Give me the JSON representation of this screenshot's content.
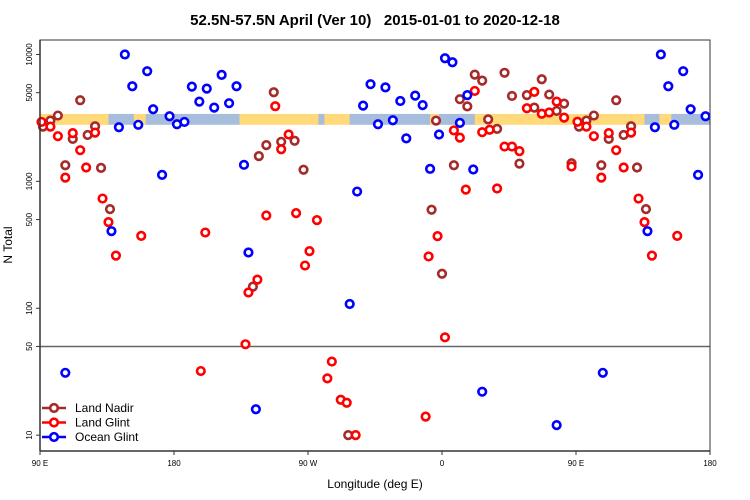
{
  "chart_data": {
    "type": "scatter",
    "title": "52.5N-57.5N April (Ver 10)   2015-01-01 to 2020-12-18",
    "xlabel": "Longitude (deg E)",
    "ylabel": "N Total",
    "x_note": "longitude unwrapped eastward from 90E (values >360 continue past 0)",
    "xlim": [
      90,
      540
    ],
    "ylim": [
      7.5,
      13000
    ],
    "yscale": "log",
    "x_ticks": [
      {
        "value": 90,
        "label": "90 E"
      },
      {
        "value": 180,
        "label": "180"
      },
      {
        "value": 270,
        "label": "90 W"
      },
      {
        "value": 360,
        "label": "0"
      },
      {
        "value": 450,
        "label": "90 E"
      },
      {
        "value": 540,
        "label": "180"
      }
    ],
    "y_ticks": [
      {
        "value": 10,
        "label": "10"
      },
      {
        "value": 50,
        "label": "50"
      },
      {
        "value": 100,
        "label": "100"
      },
      {
        "value": 500,
        "label": "500"
      },
      {
        "value": 1000,
        "label": "1000"
      },
      {
        "value": 5000,
        "label": "5000"
      },
      {
        "value": 10000,
        "label": "10000"
      }
    ],
    "reference_line": 50,
    "grid": false,
    "legend_position": "bottom-left",
    "surface_band": {
      "value_range": [
        2790,
        3400
      ],
      "land_color": "#FFD97A",
      "ocean_color": "#A6BDDB",
      "segments": [
        [
          90,
          136,
          "land"
        ],
        [
          136,
          153,
          "ocean"
        ],
        [
          153,
          161,
          "land"
        ],
        [
          161,
          224,
          "ocean"
        ],
        [
          224,
          277,
          "land"
        ],
        [
          277,
          281,
          "ocean"
        ],
        [
          281,
          298,
          "land"
        ],
        [
          298,
          352,
          "ocean"
        ],
        [
          352,
          358,
          "land"
        ],
        [
          358,
          382,
          "ocean"
        ],
        [
          382,
          496,
          "land"
        ],
        [
          496,
          506,
          "ocean"
        ],
        [
          506,
          514,
          "land"
        ],
        [
          514,
          540,
          "ocean"
        ]
      ]
    },
    "series": [
      {
        "name": "Land Nadir",
        "color": "#A52A2A",
        "points": [
          [
            92,
            2700
          ],
          [
            97,
            3010
          ],
          [
            102,
            3300
          ],
          [
            117,
            4360
          ],
          [
            112,
            2160
          ],
          [
            122,
            2320
          ],
          [
            127,
            2720
          ],
          [
            107,
            1340
          ],
          [
            131,
            1277
          ],
          [
            137,
            604
          ],
          [
            247,
            5040
          ],
          [
            242,
            1930
          ],
          [
            237,
            1580
          ],
          [
            252,
            2050
          ],
          [
            261,
            2090
          ],
          [
            267,
            1235
          ],
          [
            233,
            148
          ],
          [
            297,
            10
          ],
          [
            356,
            3010
          ],
          [
            368,
            1340
          ],
          [
            353,
            597
          ],
          [
            360,
            187
          ],
          [
            382,
            6940
          ],
          [
            387,
            6220
          ],
          [
            372,
            4440
          ],
          [
            377,
            3900
          ],
          [
            391,
            3080
          ],
          [
            402,
            7170
          ],
          [
            407,
            4710
          ],
          [
            417,
            4780
          ],
          [
            427,
            6380
          ],
          [
            432,
            4830
          ],
          [
            422,
            3810
          ],
          [
            437,
            3590
          ],
          [
            442,
            4100
          ],
          [
            397,
            2590
          ],
          [
            462,
            3300
          ],
          [
            457,
            3010
          ],
          [
            452,
            2700
          ],
          [
            472,
            2160
          ],
          [
            477,
            4360
          ],
          [
            482,
            2320
          ],
          [
            487,
            2720
          ],
          [
            412,
            1380
          ],
          [
            447,
            1390
          ],
          [
            467,
            1340
          ],
          [
            491,
            1285
          ],
          [
            497,
            604
          ]
        ]
      },
      {
        "name": "Land Glint",
        "color": "#FF0000",
        "points": [
          [
            91,
            2940
          ],
          [
            97,
            2700
          ],
          [
            102,
            2270
          ],
          [
            112,
            2400
          ],
          [
            117,
            1760
          ],
          [
            121,
            1285
          ],
          [
            107,
            1070
          ],
          [
            127,
            2420
          ],
          [
            132,
            732
          ],
          [
            136,
            477
          ],
          [
            158,
            372
          ],
          [
            201,
            395
          ],
          [
            141,
            260
          ],
          [
            248,
            3910
          ],
          [
            257,
            2340
          ],
          [
            252,
            1790
          ],
          [
            242,
            538
          ],
          [
            262,
            562
          ],
          [
            276,
            495
          ],
          [
            271,
            282
          ],
          [
            268,
            217
          ],
          [
            236,
            168
          ],
          [
            230,
            133
          ],
          [
            228,
            52
          ],
          [
            198,
            32
          ],
          [
            286,
            38
          ],
          [
            283,
            28
          ],
          [
            292,
            19
          ],
          [
            296,
            18
          ],
          [
            302,
            10
          ],
          [
            368,
            2520
          ],
          [
            372,
            2210
          ],
          [
            382,
            5160
          ],
          [
            387,
            2440
          ],
          [
            376,
            861
          ],
          [
            357,
            370
          ],
          [
            351,
            256
          ],
          [
            362,
            59
          ],
          [
            349,
            14
          ],
          [
            392,
            2550
          ],
          [
            422,
            5070
          ],
          [
            417,
            3770
          ],
          [
            427,
            3410
          ],
          [
            432,
            3490
          ],
          [
            437,
            4250
          ],
          [
            442,
            3180
          ],
          [
            451,
            2950
          ],
          [
            457,
            2700
          ],
          [
            462,
            2270
          ],
          [
            472,
            2400
          ],
          [
            487,
            2420
          ],
          [
            402,
            1880
          ],
          [
            407,
            1880
          ],
          [
            412,
            1730
          ],
          [
            477,
            1760
          ],
          [
            447,
            1310
          ],
          [
            467,
            1070
          ],
          [
            482,
            1285
          ],
          [
            397,
            878
          ],
          [
            492,
            732
          ],
          [
            496,
            477
          ],
          [
            518,
            372
          ],
          [
            501,
            260
          ]
        ]
      },
      {
        "name": "Ocean Glint",
        "color": "#0000FF",
        "points": [
          [
            147,
            10000
          ],
          [
            152,
            5620
          ],
          [
            162,
            7380
          ],
          [
            166,
            3700
          ],
          [
            177,
            3260
          ],
          [
            182,
            2820
          ],
          [
            187,
            2940
          ],
          [
            192,
            5580
          ],
          [
            197,
            4250
          ],
          [
            202,
            5380
          ],
          [
            207,
            3810
          ],
          [
            212,
            6900
          ],
          [
            217,
            4130
          ],
          [
            222,
            5620
          ],
          [
            143,
            2670
          ],
          [
            156,
            2790
          ],
          [
            172,
            1125
          ],
          [
            227,
            1350
          ],
          [
            138,
            405
          ],
          [
            230,
            275
          ],
          [
            362,
            9330
          ],
          [
            367,
            8680
          ],
          [
            312,
            5830
          ],
          [
            322,
            5500
          ],
          [
            307,
            3950
          ],
          [
            332,
            4300
          ],
          [
            342,
            4740
          ],
          [
            347,
            3990
          ],
          [
            317,
            2820
          ],
          [
            327,
            3030
          ],
          [
            336,
            2180
          ],
          [
            358,
            2340
          ],
          [
            372,
            2890
          ],
          [
            377,
            4780
          ],
          [
            352,
            1255
          ],
          [
            381,
            1240
          ],
          [
            303,
            831
          ],
          [
            507,
            10000
          ],
          [
            522,
            7380
          ],
          [
            512,
            5620
          ],
          [
            527,
            3700
          ],
          [
            537,
            3260
          ],
          [
            503,
            2670
          ],
          [
            516,
            2790
          ],
          [
            532,
            1125
          ],
          [
            498,
            405
          ],
          [
            298,
            108
          ],
          [
            107,
            31
          ],
          [
            235,
            16
          ],
          [
            387,
            22
          ],
          [
            437,
            12
          ],
          [
            468,
            31
          ]
        ]
      }
    ]
  }
}
